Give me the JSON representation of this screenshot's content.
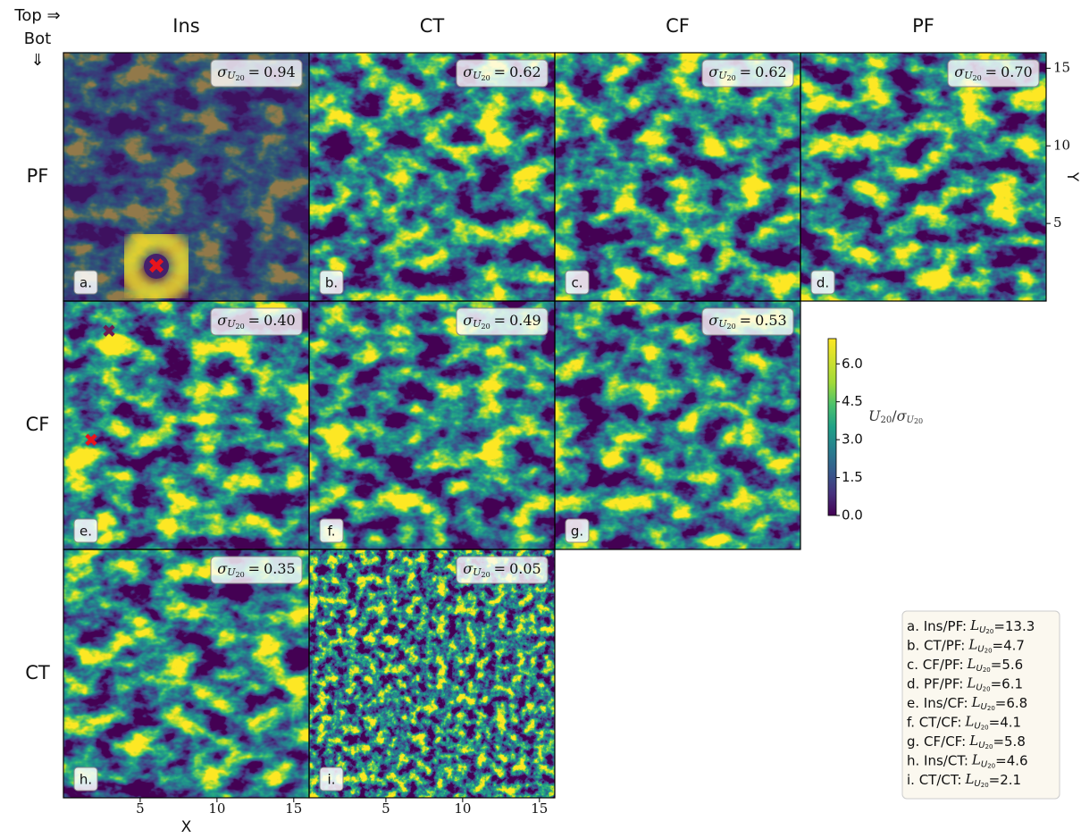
{
  "corner": {
    "line1": "Top ⇒",
    "line2": "Bot",
    "line3": "⇓"
  },
  "columns": [
    "Ins",
    "CT",
    "CF",
    "PF"
  ],
  "rows": [
    "PF",
    "CF",
    "CT"
  ],
  "symbols": {
    "sigma": "σ",
    "L": "L",
    "U": "U",
    "sub": "20",
    "eq": "=",
    "slash": "/"
  },
  "grid": [
    [
      {
        "label": "a.",
        "sigma": 0.94
      },
      {
        "label": "b.",
        "sigma": 0.62
      },
      {
        "label": "c.",
        "sigma": 0.62
      },
      {
        "label": "d.",
        "sigma": {
          "value": 0.7,
          "label": "0.70"
        }
      }
    ],
    [
      {
        "label": "e.",
        "sigma": {
          "value": 0.4,
          "label": "0.40"
        }
      },
      {
        "label": "f.",
        "sigma": 0.49
      },
      {
        "label": "g.",
        "sigma": 0.53
      }
    ],
    [
      {
        "label": "h.",
        "sigma": 0.35
      },
      {
        "label": "i.",
        "sigma": 0.05
      }
    ]
  ],
  "x_axis": {
    "label": "X",
    "lim": [
      0,
      16
    ],
    "ticks": [
      5,
      10,
      15
    ]
  },
  "y_axis": {
    "label": "Y",
    "lim": [
      0,
      16
    ],
    "ticks": [
      5,
      10,
      15
    ]
  },
  "colorbar": {
    "lim": [
      0,
      7
    ],
    "ticks": [
      {
        "value": 0,
        "label": "0.0"
      },
      {
        "value": 1.5,
        "label": "1.5"
      },
      {
        "value": 3,
        "label": "3.0"
      },
      {
        "value": 4.5,
        "label": "4.5"
      },
      {
        "value": 6,
        "label": "6.0"
      }
    ]
  },
  "legend": [
    {
      "prefix": "a. Ins/PF:",
      "value": 13.3
    },
    {
      "prefix": "b. CT/PF:",
      "value": 4.7
    },
    {
      "prefix": "c. CF/PF:",
      "value": 5.6
    },
    {
      "prefix": "d. PF/PF:",
      "value": 6.1
    },
    {
      "prefix": "e. Ins/CF:",
      "value": 6.8
    },
    {
      "prefix": "f. CT/CF:",
      "value": 4.1
    },
    {
      "prefix": "g. CF/CF:",
      "value": 5.8
    },
    {
      "prefix": "h. Ins/CT:",
      "value": 4.6
    },
    {
      "prefix": "i. CT/CT:",
      "value": 2.1
    }
  ]
}
